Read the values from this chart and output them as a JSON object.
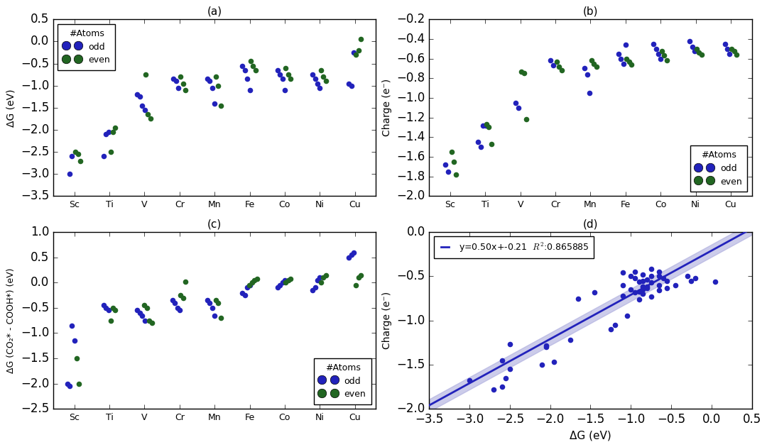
{
  "elements": [
    "Sc",
    "Ti",
    "V",
    "Cr",
    "Mn",
    "Fe",
    "Co",
    "Ni",
    "Cu"
  ],
  "panel_a": {
    "title": "(a)",
    "ylabel": "ΔG (eV)",
    "ylim": [
      -3.5,
      0.5
    ],
    "yticks": [
      0.5,
      0.0,
      -0.5,
      -1.0,
      -1.5,
      -2.0,
      -2.5,
      -3.0,
      -3.5
    ],
    "odd_data": {
      "Sc": [
        -3.0,
        -2.6
      ],
      "Ti": [
        -2.6,
        -2.1,
        -2.05
      ],
      "V": [
        -1.2,
        -1.25,
        -1.45,
        -1.55
      ],
      "Cr": [
        -0.85,
        -0.9,
        -1.05
      ],
      "Mn": [
        -0.85,
        -0.9,
        -1.05,
        -1.4
      ],
      "Fe": [
        -0.55,
        -0.65,
        -0.85,
        -1.1
      ],
      "Co": [
        -0.65,
        -0.75,
        -0.85,
        -1.1
      ],
      "Ni": [
        -0.75,
        -0.85,
        -0.95,
        -1.05
      ],
      "Cu": [
        -0.95,
        -1.0,
        -0.25
      ]
    },
    "even_data": {
      "Sc": [
        -2.5,
        -2.55,
        -2.7
      ],
      "Ti": [
        -2.5,
        -2.05,
        -1.95
      ],
      "V": [
        -0.75,
        -1.65,
        -1.75
      ],
      "Cr": [
        -0.8,
        -0.95,
        -1.1
      ],
      "Mn": [
        -0.8,
        -1.0,
        -1.45
      ],
      "Fe": [
        -0.45,
        -0.55,
        -0.65
      ],
      "Co": [
        -0.6,
        -0.75,
        -0.85
      ],
      "Ni": [
        -0.65,
        -0.8,
        -0.9
      ],
      "Cu": [
        -0.3,
        -0.2,
        0.05
      ]
    }
  },
  "panel_b": {
    "title": "(b)",
    "ylabel": "Charge (e⁻)",
    "ylim": [
      -2.0,
      -0.2
    ],
    "yticks": [
      -2.0,
      -1.8,
      -1.6,
      -1.4,
      -1.2,
      -1.0,
      -0.8,
      -0.6,
      -0.4,
      -0.2
    ],
    "odd_data": {
      "Sc": [
        -1.68,
        -1.75
      ],
      "Ti": [
        -1.45,
        -1.5,
        -1.28,
        -1.28
      ],
      "V": [
        -1.05,
        -1.1
      ],
      "Cr": [
        -0.62,
        -0.67
      ],
      "Mn": [
        -0.7,
        -0.76,
        -0.95
      ],
      "Fe": [
        -0.55,
        -0.6,
        -0.65,
        -0.46
      ],
      "Co": [
        -0.45,
        -0.5,
        -0.55,
        -0.6
      ],
      "Ni": [
        -0.42,
        -0.48,
        -0.52
      ],
      "Cu": [
        -0.45,
        -0.5,
        -0.55
      ]
    },
    "even_data": {
      "Sc": [
        -1.55,
        -1.65,
        -1.78
      ],
      "Ti": [
        -1.27,
        -1.3,
        -1.47
      ],
      "V": [
        -0.73,
        -0.75,
        -1.22
      ],
      "Cr": [
        -0.63,
        -0.68,
        -0.72
      ],
      "Mn": [
        -0.62,
        -0.65,
        -0.68
      ],
      "Fe": [
        -0.6,
        -0.63,
        -0.66
      ],
      "Co": [
        -0.52,
        -0.57,
        -0.62
      ],
      "Ni": [
        -0.5,
        -0.54,
        -0.56
      ],
      "Cu": [
        -0.5,
        -0.52,
        -0.56
      ]
    }
  },
  "panel_c": {
    "title": "(c)",
    "ylabel": "ΔG (CO₂* - COOH*) (eV)",
    "ylim": [
      -2.5,
      1.0
    ],
    "yticks": [
      1.0,
      0.5,
      0.0,
      -0.5,
      -1.0,
      -1.5,
      -2.0,
      -2.5
    ],
    "odd_data": {
      "Sc": [
        -2.0,
        -2.05,
        -0.85,
        -1.15
      ],
      "Ti": [
        -0.45,
        -0.5,
        -0.55
      ],
      "V": [
        -0.55,
        -0.6,
        -0.65,
        -0.75
      ],
      "Cr": [
        -0.35,
        -0.4,
        -0.5,
        -0.55
      ],
      "Mn": [
        -0.35,
        -0.4,
        -0.5,
        -0.65
      ],
      "Fe": [
        -0.2,
        -0.25,
        -0.1,
        -0.05
      ],
      "Co": [
        -0.1,
        -0.05,
        0.0,
        0.05
      ],
      "Ni": [
        -0.15,
        -0.1,
        0.05,
        0.1
      ],
      "Cu": [
        0.5,
        0.55,
        0.6
      ]
    },
    "even_data": {
      "Sc": [
        -1.5,
        -2.0
      ],
      "Ti": [
        -0.75,
        -0.5,
        -0.55
      ],
      "V": [
        -0.45,
        -0.5,
        -0.75,
        -0.8
      ],
      "Cr": [
        -0.25,
        -0.3,
        0.02
      ],
      "Mn": [
        -0.35,
        -0.4,
        -0.7
      ],
      "Fe": [
        -0.05,
        0.0,
        0.05,
        0.07
      ],
      "Co": [
        0.0,
        0.04,
        0.08
      ],
      "Ni": [
        0.0,
        0.1,
        0.15
      ],
      "Cu": [
        -0.05,
        0.1,
        0.15
      ]
    }
  },
  "panel_d": {
    "title": "(d)",
    "xlabel": "ΔG (eV)",
    "ylabel": "Charge (e⁻)",
    "xlim": [
      -3.5,
      0.5
    ],
    "ylim": [
      -2.0,
      0.0
    ],
    "xticks": [
      -3.5,
      -3.0,
      -2.5,
      -2.0,
      -1.5,
      -1.0,
      -0.5,
      0.0,
      0.5
    ],
    "yticks": [
      0.0,
      -0.5,
      -1.0,
      -1.5,
      -2.0
    ],
    "slope": 0.5,
    "intercept": -0.21,
    "r2": 0.865885,
    "line_color": "#2222bb",
    "ci_color": "#aaaadd",
    "annotation": "y=0.50x+-0.21  R²:0.865885"
  },
  "blue": "#2222bb",
  "green": "#226622",
  "marker_size": 30,
  "legend_marker_size": 9
}
